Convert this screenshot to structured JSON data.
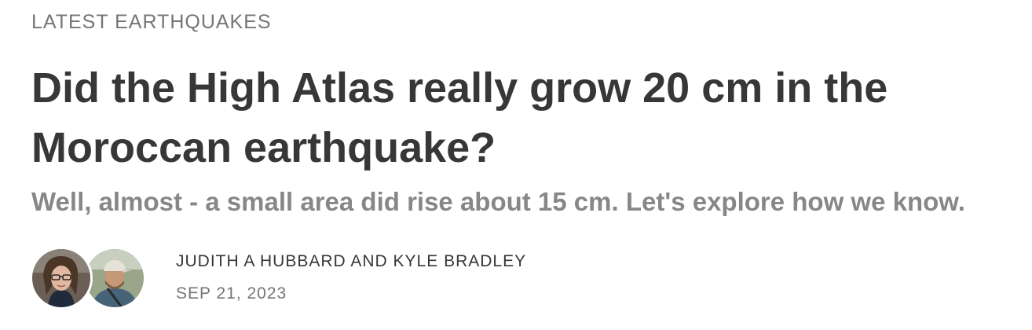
{
  "section": {
    "label": "LATEST EARTHQUAKES"
  },
  "post": {
    "title": "Did the High Atlas really grow 20 cm in the Moroccan earthquake?",
    "subtitle": "Well, almost - a small area did rise about 15 cm. Let's explore how we know.",
    "authors_label": "JUDITH A HUBBARD AND KYLE BRADLEY",
    "date": "SEP 21, 2023"
  },
  "avatars": [
    {
      "icon": "author-photo-woman-glasses"
    },
    {
      "icon": "author-photo-man-cap"
    }
  ],
  "colors": {
    "text_primary": "#363737",
    "text_secondary": "#757575",
    "subtitle": "#868787",
    "background": "#ffffff"
  }
}
